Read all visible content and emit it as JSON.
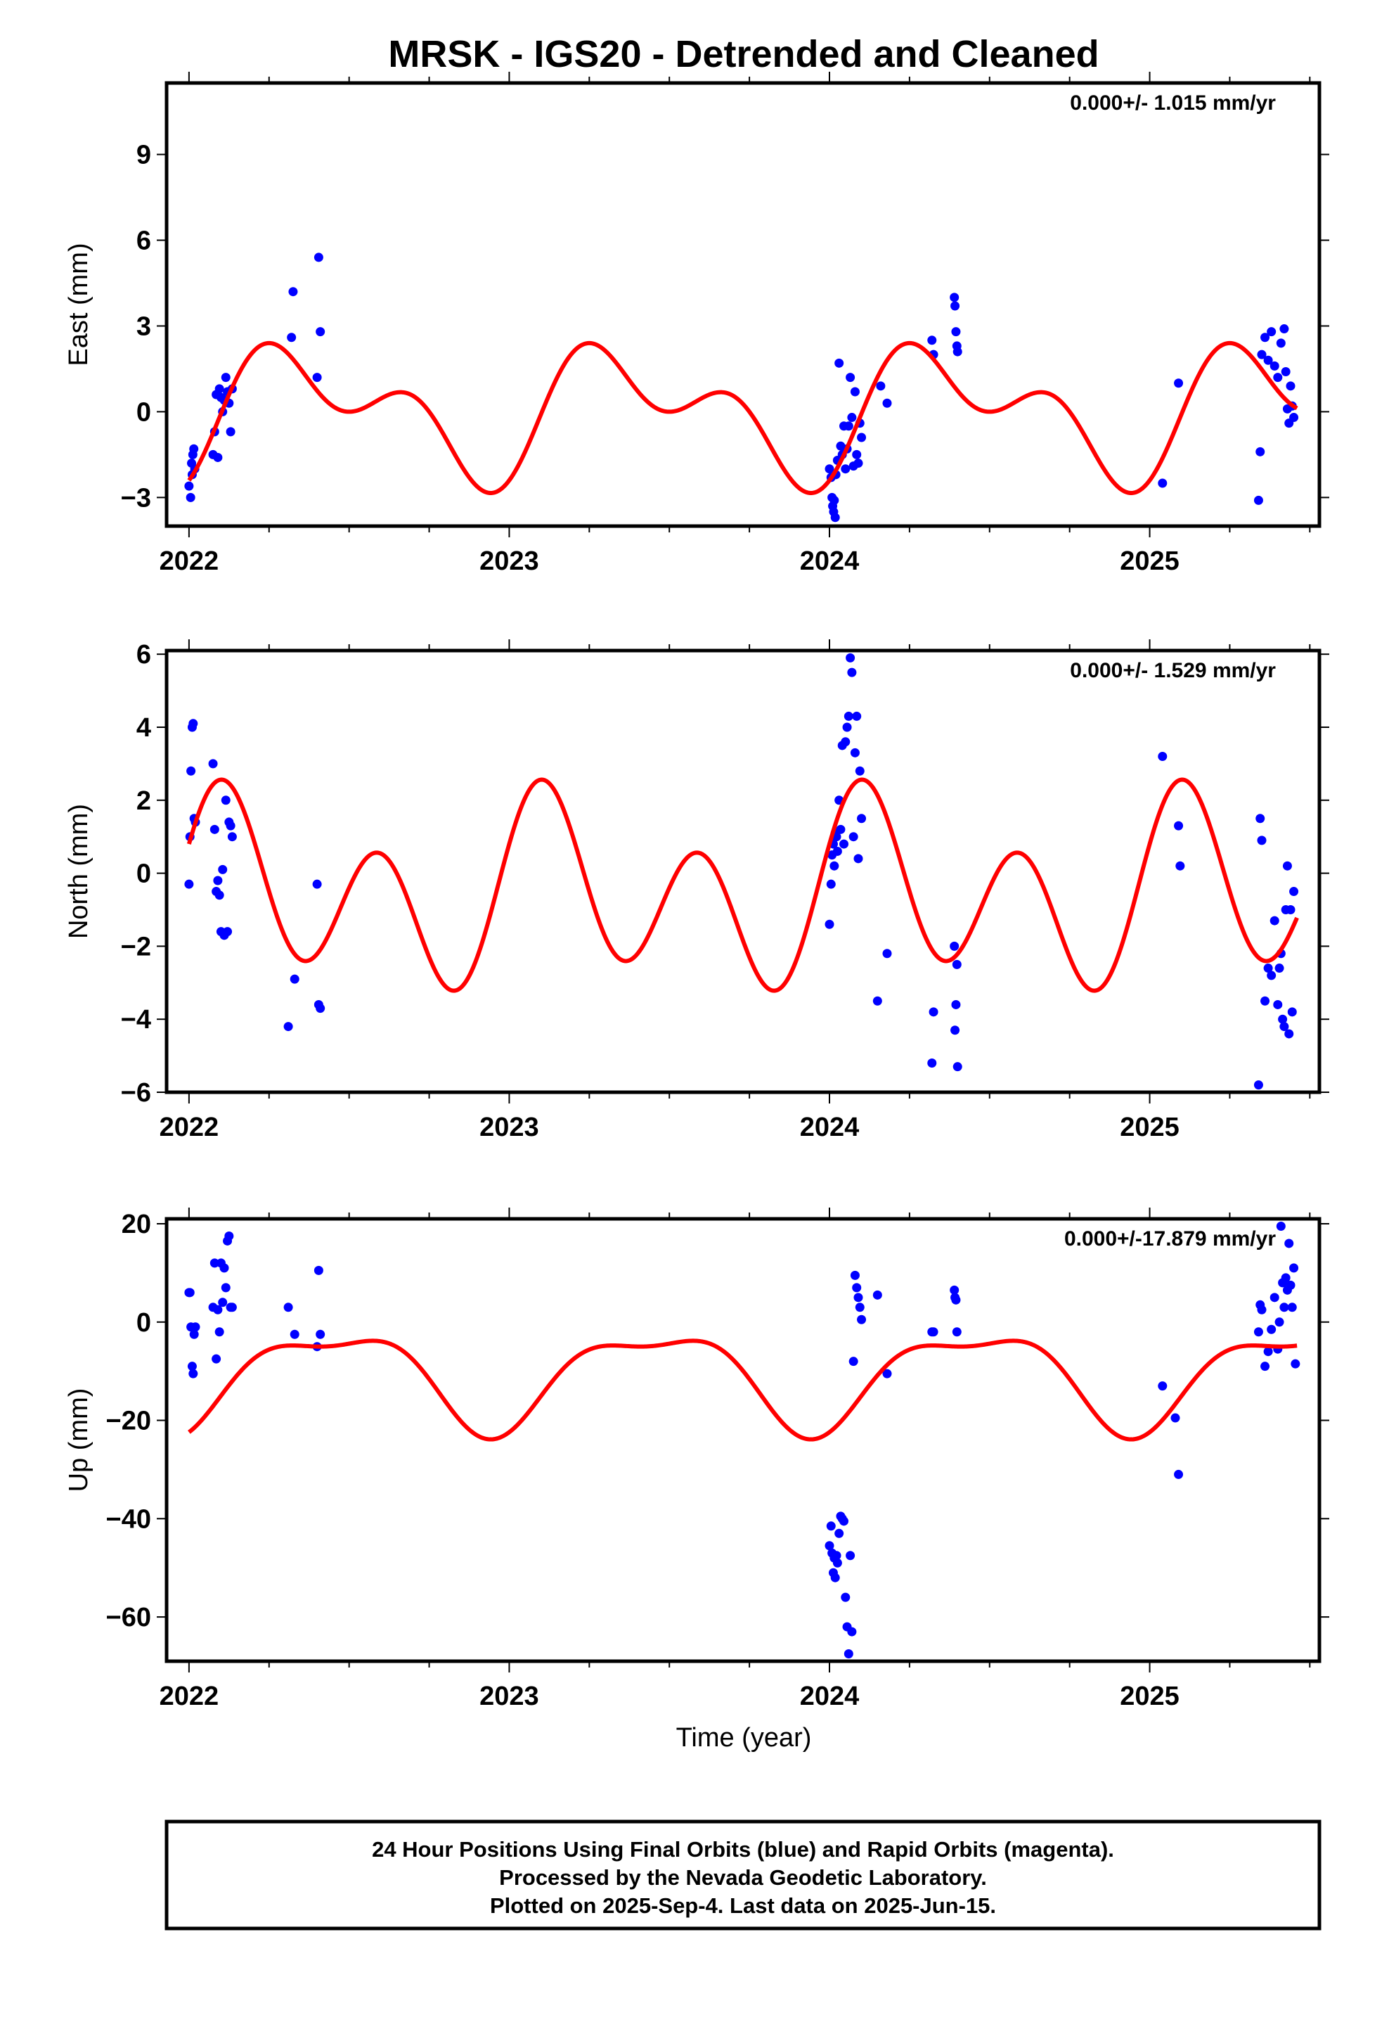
{
  "title": "MRSK - IGS20 - Detrended and Cleaned",
  "xlabel": "Time (year)",
  "footer": {
    "line1": "24 Hour Positions Using Final Orbits (blue) and Rapid Orbits (magenta).",
    "line2": "Processed by the Nevada Geodetic Laboratory.",
    "line3": "Plotted on 2025-Sep-4. Last data on 2025-Jun-15."
  },
  "colors": {
    "points": "#0000ff",
    "model": "#ff0000",
    "frame": "#000000"
  },
  "chart_data": [
    {
      "type": "scatter",
      "ylabel": "East (mm)",
      "rate_text": "0.000+/- 1.015 mm/yr",
      "xlim": [
        2021.93,
        2025.53
      ],
      "ylim": [
        -4.0,
        11.5
      ],
      "xticks": [
        2022,
        2023,
        2024,
        2025
      ],
      "xtick_labels": [
        "2022",
        "2023",
        "2024",
        "2025"
      ],
      "yticks": [
        -3,
        0,
        3,
        6,
        9
      ],
      "ytick_labels": [
        "−3",
        "0",
        "3",
        "6",
        "9"
      ],
      "model": {
        "offset": 0.0,
        "annual_sin": 1.2,
        "annual_cos": -1.2,
        "semiannual_sin": 0.6,
        "semiannual_cos": -1.2
      },
      "series": [
        {
          "x": [
            2022.0,
            2022.005,
            2022.008,
            2022.01,
            2022.012,
            2022.015,
            2022.018,
            2022.075,
            2022.08,
            2022.085,
            2022.09,
            2022.095,
            2022.1,
            2022.105,
            2022.11,
            2022.115,
            2022.12,
            2022.125,
            2022.13,
            2022.135,
            2022.32,
            2022.325,
            2022.4,
            2022.405,
            2022.41,
            2024.0,
            2024.005,
            2024.008,
            2024.01,
            2024.013,
            2024.015,
            2024.018,
            2024.02,
            2024.025,
            2024.03,
            2024.035,
            2024.04,
            2024.045,
            2024.05,
            2024.055,
            2024.06,
            2024.065,
            2024.07,
            2024.075,
            2024.08,
            2024.085,
            2024.09,
            2024.095,
            2024.1,
            2024.16,
            2024.18,
            2024.32,
            2024.325,
            2024.39,
            2024.392,
            2024.395,
            2024.398,
            2024.4,
            2025.04,
            2025.09,
            2025.34,
            2025.345,
            2025.35,
            2025.36,
            2025.37,
            2025.38,
            2025.39,
            2025.4,
            2025.41,
            2025.42,
            2025.425,
            2025.43,
            2025.435,
            2025.44,
            2025.445,
            2025.45
          ],
          "y": [
            -2.6,
            -3.0,
            -1.8,
            -2.2,
            -1.5,
            -1.3,
            -2.0,
            -1.5,
            -0.7,
            0.6,
            -1.6,
            0.8,
            0.5,
            0.0,
            0.4,
            1.2,
            0.7,
            0.3,
            -0.7,
            0.8,
            2.6,
            4.2,
            1.2,
            5.4,
            2.8,
            -2.0,
            -2.3,
            -3.0,
            -3.3,
            -3.5,
            -3.1,
            -3.7,
            -2.2,
            -1.7,
            1.7,
            -1.2,
            -1.5,
            -0.5,
            -2.0,
            -1.3,
            -0.5,
            1.2,
            -0.2,
            -1.9,
            0.7,
            -1.5,
            -1.8,
            -0.4,
            -0.9,
            0.9,
            0.3,
            2.5,
            2.0,
            4.0,
            3.7,
            2.8,
            2.3,
            2.1,
            -2.5,
            1.0,
            -3.1,
            -1.4,
            2.0,
            2.6,
            1.8,
            2.8,
            1.6,
            1.2,
            2.4,
            2.9,
            1.4,
            0.1,
            -0.4,
            0.9,
            0.2,
            -0.2
          ]
        }
      ]
    },
    {
      "type": "scatter",
      "ylabel": "North (mm)",
      "rate_text": "0.000+/- 1.529 mm/yr",
      "xlim": [
        2021.93,
        2025.53
      ],
      "ylim": [
        -6.0,
        6.1
      ],
      "xticks": [
        2022,
        2023,
        2024,
        2025
      ],
      "xtick_labels": [
        "2022",
        "2023",
        "2024",
        "2025"
      ],
      "yticks": [
        -6,
        -4,
        -2,
        0,
        2,
        4,
        6
      ],
      "ytick_labels": [
        "−6",
        "−4",
        "−2",
        "0",
        "2",
        "4",
        "6"
      ],
      "model": {
        "offset": -0.6,
        "annual_sin": 0.9,
        "annual_cos": 0.6,
        "semiannual_sin": 2.0,
        "semiannual_cos": 0.8
      },
      "series": [
        {
          "x": [
            2022.0,
            2022.003,
            2022.006,
            2022.01,
            2022.013,
            2022.016,
            2022.02,
            2022.075,
            2022.08,
            2022.085,
            2022.09,
            2022.095,
            2022.1,
            2022.105,
            2022.11,
            2022.115,
            2022.12,
            2022.125,
            2022.13,
            2022.135,
            2022.31,
            2022.33,
            2022.4,
            2022.405,
            2022.41,
            2024.0,
            2024.005,
            2024.008,
            2024.012,
            2024.015,
            2024.018,
            2024.022,
            2024.025,
            2024.03,
            2024.035,
            2024.04,
            2024.045,
            2024.05,
            2024.055,
            2024.06,
            2024.065,
            2024.07,
            2024.075,
            2024.08,
            2024.085,
            2024.09,
            2024.095,
            2024.1,
            2024.15,
            2024.18,
            2024.32,
            2024.325,
            2024.39,
            2024.392,
            2024.395,
            2024.398,
            2024.4,
            2025.04,
            2025.09,
            2025.095,
            2025.34,
            2025.345,
            2025.35,
            2025.36,
            2025.37,
            2025.38,
            2025.39,
            2025.4,
            2025.405,
            2025.41,
            2025.415,
            2025.42,
            2025.425,
            2025.43,
            2025.435,
            2025.44,
            2025.445,
            2025.45
          ],
          "y": [
            -0.3,
            1.0,
            2.8,
            4.0,
            4.1,
            1.5,
            1.4,
            3.0,
            1.2,
            -0.5,
            -0.2,
            -0.6,
            -1.6,
            0.1,
            -1.7,
            2.0,
            -1.6,
            1.4,
            1.3,
            1.0,
            -4.2,
            -2.9,
            -0.3,
            -3.6,
            -3.7,
            -1.4,
            -0.3,
            0.5,
            0.8,
            0.2,
            1.1,
            1.0,
            0.6,
            2.0,
            1.2,
            3.5,
            0.8,
            3.6,
            4.0,
            4.3,
            5.9,
            5.5,
            1.0,
            3.3,
            4.3,
            0.4,
            2.8,
            1.5,
            -3.5,
            -2.2,
            -5.2,
            -3.8,
            -2.0,
            -4.3,
            -3.6,
            -2.5,
            -5.3,
            3.2,
            1.3,
            0.2,
            -5.8,
            1.5,
            0.9,
            -3.5,
            -2.6,
            -2.8,
            -1.3,
            -3.6,
            -2.6,
            -2.2,
            -4.0,
            -4.2,
            -1.0,
            0.2,
            -4.4,
            -1.0,
            -3.8,
            -0.5
          ],
          "note": ""
        }
      ]
    },
    {
      "type": "scatter",
      "ylabel": "Up (mm)",
      "rate_text": "0.000+/-17.879 mm/yr",
      "xlim": [
        2021.93,
        2025.53
      ],
      "ylim": [
        -69.0,
        21.0
      ],
      "xticks": [
        2022,
        2023,
        2024,
        2025
      ],
      "xtick_labels": [
        "2022",
        "2023",
        "2024",
        "2025"
      ],
      "yticks": [
        -60,
        -40,
        -20,
        0,
        20
      ],
      "ytick_labels": [
        "−60",
        "−40",
        "−20",
        "0",
        "20"
      ],
      "model": {
        "offset": -11.0,
        "annual_sin": 3.0,
        "annual_cos": -9.0,
        "semiannual_sin": 2.4,
        "semiannual_cos": -2.4
      },
      "series": [
        {
          "x": [
            2022.0,
            2022.003,
            2022.006,
            2022.01,
            2022.013,
            2022.016,
            2022.02,
            2022.075,
            2022.08,
            2022.085,
            2022.09,
            2022.095,
            2022.1,
            2022.105,
            2022.11,
            2022.115,
            2022.12,
            2022.125,
            2022.13,
            2022.135,
            2022.31,
            2022.33,
            2022.4,
            2022.405,
            2022.41,
            2024.0,
            2024.005,
            2024.008,
            2024.012,
            2024.015,
            2024.018,
            2024.022,
            2024.025,
            2024.03,
            2024.035,
            2024.04,
            2024.045,
            2024.05,
            2024.055,
            2024.06,
            2024.065,
            2024.07,
            2024.075,
            2024.08,
            2024.085,
            2024.09,
            2024.095,
            2024.1,
            2024.15,
            2024.18,
            2024.32,
            2024.325,
            2024.39,
            2024.392,
            2024.395,
            2024.398,
            2025.04,
            2025.08,
            2025.09,
            2025.34,
            2025.345,
            2025.35,
            2025.36,
            2025.37,
            2025.38,
            2025.39,
            2025.4,
            2025.405,
            2025.41,
            2025.415,
            2025.42,
            2025.425,
            2025.43,
            2025.435,
            2025.44,
            2025.445,
            2025.45,
            2025.455
          ],
          "y": [
            6.0,
            6.0,
            -1.0,
            -9.0,
            -10.5,
            -2.5,
            -1.0,
            3.0,
            12.0,
            -7.5,
            2.5,
            -2.0,
            12.0,
            4.0,
            11.0,
            7.0,
            16.5,
            17.5,
            3.0,
            3.0,
            3.0,
            -2.5,
            -5.0,
            10.5,
            -2.5,
            -45.5,
            -41.5,
            -47.0,
            -51.0,
            -48.0,
            -52.0,
            -47.5,
            -49.0,
            -43.0,
            -39.5,
            -40.0,
            -40.5,
            -56.0,
            -62.0,
            -67.5,
            -47.5,
            -63.0,
            -8.0,
            9.5,
            7.0,
            5.0,
            3.0,
            0.5,
            5.5,
            -10.5,
            -2.0,
            -2.0,
            6.5,
            5.0,
            4.5,
            -2.0,
            -13.0,
            -19.5,
            -31.0,
            -2.0,
            3.5,
            2.5,
            -9.0,
            -6.0,
            -1.5,
            5.0,
            -5.5,
            0.0,
            19.5,
            8.0,
            3.0,
            9.0,
            6.5,
            16.0,
            7.5,
            3.0,
            11.0,
            -8.5
          ],
          "note": ""
        }
      ]
    }
  ]
}
